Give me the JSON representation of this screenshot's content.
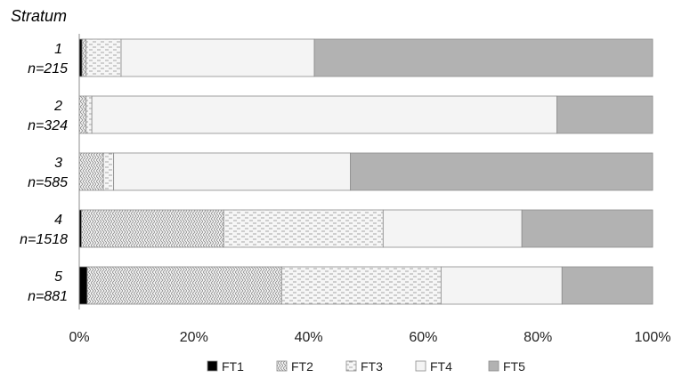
{
  "chart_data": {
    "type": "bar",
    "orientation": "horizontal",
    "stacked": true,
    "percent": true,
    "y_title": "Stratum",
    "categories": [
      {
        "stratum": "1",
        "n": "n=215"
      },
      {
        "stratum": "2",
        "n": "n=324"
      },
      {
        "stratum": "3",
        "n": "n=585"
      },
      {
        "stratum": "4",
        "n": "n=1518"
      },
      {
        "stratum": "5",
        "n": "n=881"
      }
    ],
    "series": [
      {
        "name": "FT1",
        "pattern": "solid-black",
        "values": [
          0.5,
          0.0,
          0.0,
          0.4,
          1.4
        ]
      },
      {
        "name": "FT2",
        "pattern": "diagonal-hatch",
        "values": [
          0.7,
          1.2,
          4.2,
          24.8,
          33.9
        ]
      },
      {
        "name": "FT3",
        "pattern": "dashes",
        "values": [
          6.1,
          1.0,
          1.8,
          27.8,
          27.8
        ]
      },
      {
        "name": "FT4",
        "pattern": "light-fill",
        "values": [
          33.7,
          81.1,
          41.3,
          24.2,
          21.1
        ]
      },
      {
        "name": "FT5",
        "pattern": "gray-fill",
        "values": [
          59.0,
          16.7,
          52.7,
          22.8,
          15.8
        ]
      }
    ],
    "x_ticks": [
      "0%",
      "20%",
      "40%",
      "60%",
      "80%",
      "100%"
    ],
    "xlim": [
      0,
      100
    ],
    "grid": false,
    "legend_position": "bottom"
  }
}
